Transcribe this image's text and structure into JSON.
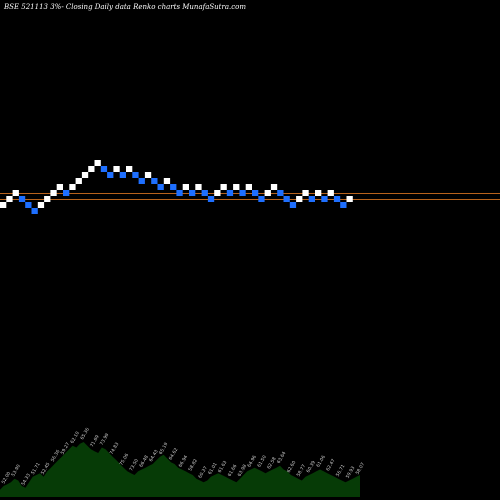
{
  "header": {
    "title": "BSE 521113 3%- Closing Daily data Renko charts MunafaSutra.com"
  },
  "chart_data": {
    "type": "renko",
    "title": "BSE 521113 3%- Closing Daily data Renko charts MunafaSutra.com",
    "bricks": [
      {
        "level": 0,
        "dir": "up"
      },
      {
        "level": 1,
        "dir": "up"
      },
      {
        "level": 2,
        "dir": "up"
      },
      {
        "level": 1,
        "dir": "down"
      },
      {
        "level": 0,
        "dir": "down"
      },
      {
        "level": -1,
        "dir": "down"
      },
      {
        "level": 0,
        "dir": "up"
      },
      {
        "level": 1,
        "dir": "up"
      },
      {
        "level": 2,
        "dir": "up"
      },
      {
        "level": 3,
        "dir": "up"
      },
      {
        "level": 2,
        "dir": "down"
      },
      {
        "level": 3,
        "dir": "up"
      },
      {
        "level": 4,
        "dir": "up"
      },
      {
        "level": 5,
        "dir": "up"
      },
      {
        "level": 6,
        "dir": "up"
      },
      {
        "level": 7,
        "dir": "up"
      },
      {
        "level": 6,
        "dir": "down"
      },
      {
        "level": 5,
        "dir": "down"
      },
      {
        "level": 6,
        "dir": "up"
      },
      {
        "level": 5,
        "dir": "down"
      },
      {
        "level": 6,
        "dir": "up"
      },
      {
        "level": 5,
        "dir": "down"
      },
      {
        "level": 4,
        "dir": "down"
      },
      {
        "level": 5,
        "dir": "up"
      },
      {
        "level": 4,
        "dir": "down"
      },
      {
        "level": 3,
        "dir": "down"
      },
      {
        "level": 4,
        "dir": "up"
      },
      {
        "level": 3,
        "dir": "down"
      },
      {
        "level": 2,
        "dir": "down"
      },
      {
        "level": 3,
        "dir": "up"
      },
      {
        "level": 2,
        "dir": "down"
      },
      {
        "level": 3,
        "dir": "up"
      },
      {
        "level": 2,
        "dir": "down"
      },
      {
        "level": 1,
        "dir": "down"
      },
      {
        "level": 2,
        "dir": "up"
      },
      {
        "level": 3,
        "dir": "up"
      },
      {
        "level": 2,
        "dir": "down"
      },
      {
        "level": 3,
        "dir": "up"
      },
      {
        "level": 2,
        "dir": "down"
      },
      {
        "level": 3,
        "dir": "up"
      },
      {
        "level": 2,
        "dir": "down"
      },
      {
        "level": 1,
        "dir": "down"
      },
      {
        "level": 2,
        "dir": "up"
      },
      {
        "level": 3,
        "dir": "up"
      },
      {
        "level": 2,
        "dir": "down"
      },
      {
        "level": 1,
        "dir": "down"
      },
      {
        "level": 0,
        "dir": "down"
      },
      {
        "level": 1,
        "dir": "up"
      },
      {
        "level": 2,
        "dir": "up"
      },
      {
        "level": 1,
        "dir": "down"
      },
      {
        "level": 2,
        "dir": "up"
      },
      {
        "level": 1,
        "dir": "down"
      },
      {
        "level": 2,
        "dir": "up"
      },
      {
        "level": 1,
        "dir": "down"
      },
      {
        "level": 0,
        "dir": "down"
      },
      {
        "level": 1,
        "dir": "up"
      }
    ],
    "reference_lines": [
      0,
      1
    ],
    "volume": [
      4,
      6,
      7,
      8,
      10,
      9,
      6,
      5,
      8,
      11,
      12,
      13,
      11,
      14,
      16,
      18,
      20,
      22,
      24,
      26,
      28,
      27,
      29,
      30,
      28,
      26,
      25,
      24,
      27,
      26,
      24,
      22,
      20,
      18,
      16,
      14,
      13,
      12,
      14,
      15,
      16,
      17,
      18,
      20,
      22,
      23,
      21,
      19,
      18,
      16,
      15,
      14,
      13,
      12,
      10,
      9,
      8,
      9,
      11,
      12,
      13,
      12,
      11,
      10,
      9,
      8,
      10,
      12,
      14,
      15,
      16,
      15,
      14,
      13,
      14,
      15,
      16,
      17,
      15,
      14,
      12,
      11,
      10,
      9,
      11,
      12,
      13,
      14,
      15,
      14,
      13,
      12,
      11,
      10,
      9,
      8,
      9,
      10,
      11,
      12
    ],
    "volume_labels": [
      "52.00",
      "53.90",
      "54.33",
      "51.71",
      "52.45",
      "56.36",
      "59.27",
      "62.10",
      "65.36",
      "71.69",
      "73.99",
      "74.83",
      "75.06",
      "73.50",
      "66.48",
      "64.43",
      "65.19",
      "64.62",
      "66.94",
      "58.82",
      "60.37",
      "61.01",
      "61.63",
      "61.66",
      "63.98",
      "64.96",
      "61.50",
      "62.58",
      "63.64",
      "62.60",
      "58.77",
      "60.39",
      "61.06",
      "62.47",
      "56.71",
      "59.93",
      "58.07"
    ],
    "colors": {
      "up": "#ffffff",
      "down": "#1e6fff",
      "reference_line": "#b8621b",
      "volume_fill": "#063b06",
      "volume_label": "#cfcfcf",
      "background": "#000000"
    }
  }
}
